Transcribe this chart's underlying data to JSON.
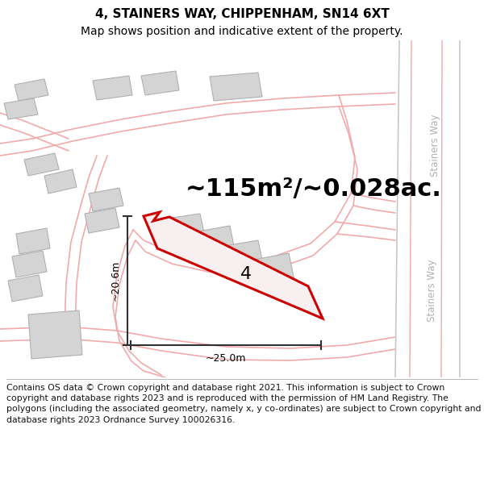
{
  "title_line1": "4, STAINERS WAY, CHIPPENHAM, SN14 6XT",
  "title_line2": "Map shows position and indicative extent of the property.",
  "footer_text": "Contains OS data © Crown copyright and database right 2021. This information is subject to Crown copyright and database rights 2023 and is reproduced with the permission of HM Land Registry. The polygons (including the associated geometry, namely x, y co-ordinates) are subject to Crown copyright and database rights 2023 Ordnance Survey 100026316.",
  "area_label": "~115m²/~0.028ac.",
  "plot_number": "4",
  "dim_width": "~25.0m",
  "dim_height": "~20.6m",
  "road_label_top": "Stainers Way",
  "road_label_bottom": "Stainers Way",
  "bg_color": "#ffffff",
  "road_pink": "#f0aaaa",
  "road_gray": "#c8c8c8",
  "building_fill": "#d4d4d4",
  "building_stroke": "#b0b0b0",
  "plot_fill": "#f8f0f0",
  "plot_stroke": "#cc0000",
  "dim_color": "#303030",
  "title_fontsize": 11,
  "subtitle_fontsize": 10,
  "footer_fontsize": 7.8,
  "area_fontsize": 22,
  "plot_label_fontsize": 16
}
